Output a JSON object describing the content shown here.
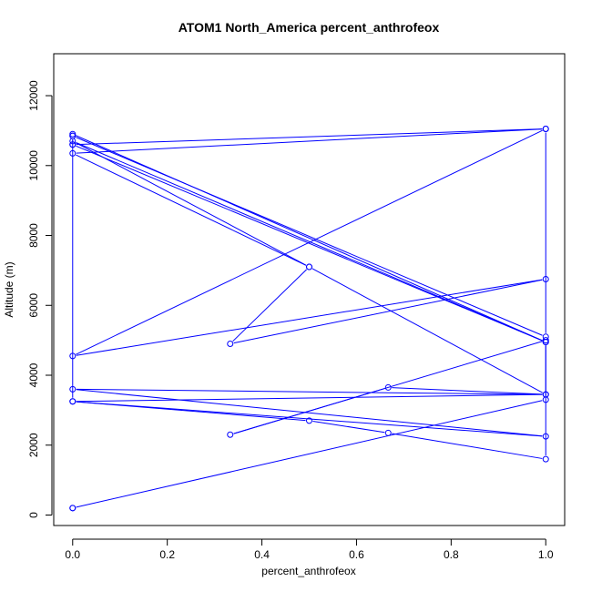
{
  "chart_data": {
    "type": "line",
    "title": "ATOM1 North_America percent_anthrofeox",
    "xlabel": "percent_anthrofeox",
    "ylabel": "Altitude (m)",
    "xlim": [
      -0.04,
      1.04
    ],
    "ylim": [
      -300,
      13200
    ],
    "x_ticks": [
      0.0,
      0.2,
      0.4,
      0.6,
      0.8,
      1.0
    ],
    "x_tick_labels": [
      "0.0",
      "0.2",
      "0.4",
      "0.6",
      "0.8",
      "1.0"
    ],
    "y_ticks": [
      0,
      2000,
      4000,
      6000,
      8000,
      10000,
      12000
    ],
    "y_tick_labels": [
      "0",
      "2000",
      "4000",
      "6000",
      "8000",
      "10000",
      "12000"
    ],
    "color": "#0000ff",
    "series": [
      {
        "x": [
          0.0,
          1.0,
          1.0,
          0.0,
          0.0,
          1.0,
          0.0,
          0.5,
          0.333,
          1.0,
          0.0,
          1.0,
          0.0,
          0.5,
          1.0,
          0.0,
          1.0,
          0.0,
          0.5,
          0.667,
          1.0,
          1.0,
          0.333,
          0.667,
          1.0,
          0.0,
          0.0,
          0.0,
          1.0,
          1.0,
          0.0,
          0.0
        ],
        "y": [
          10600,
          11050,
          5100,
          10850,
          10900,
          4950,
          10700,
          7100,
          4900,
          6750,
          4550,
          11050,
          10350,
          7100,
          3450,
          3600,
          2250,
          3250,
          2700,
          2350,
          1600,
          5000,
          2300,
          3650,
          3450,
          3250,
          10850,
          10600,
          4950,
          3300,
          200,
          200
        ]
      }
    ]
  }
}
